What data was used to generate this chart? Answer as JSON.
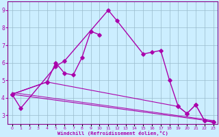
{
  "xlabel": "Windchill (Refroidissement éolien,°C)",
  "x": [
    0,
    1,
    2,
    3,
    4,
    5,
    6,
    7,
    8,
    9,
    10,
    11,
    12,
    13,
    14,
    15,
    16,
    17,
    18,
    19,
    20,
    21,
    22,
    23
  ],
  "line1_x": [
    0,
    1,
    5,
    6,
    11,
    12,
    15,
    16,
    17,
    18,
    19,
    20,
    21,
    22,
    23
  ],
  "line1_y": [
    4.2,
    3.4,
    5.8,
    6.1,
    9.0,
    8.4,
    6.5,
    6.6,
    6.7,
    5.0,
    3.5,
    3.1,
    3.6,
    2.7,
    2.6
  ],
  "line2_x": [
    0,
    4,
    5,
    6,
    7,
    8,
    9,
    10
  ],
  "line2_y": [
    4.2,
    4.9,
    6.0,
    5.4,
    5.3,
    6.3,
    7.8,
    7.6
  ],
  "trend1_x": [
    0,
    23
  ],
  "trend1_y": [
    4.2,
    2.65
  ],
  "trend2_x": [
    0,
    4,
    19,
    20,
    21,
    22,
    23
  ],
  "trend2_y": [
    4.2,
    4.9,
    3.5,
    3.1,
    3.6,
    2.7,
    2.6
  ],
  "trend3_x": [
    0,
    23
  ],
  "trend3_y": [
    4.3,
    2.7
  ],
  "line_color": "#AA00AA",
  "bg_color": "#CCEEFF",
  "grid_color": "#99BBCC",
  "ylim": [
    2.5,
    9.5
  ],
  "xlim": [
    -0.5,
    23.5
  ],
  "yticks": [
    3,
    4,
    5,
    6,
    7,
    8,
    9
  ],
  "xtick_labels": [
    "0",
    "1",
    "2",
    "3",
    "4",
    "5",
    "6",
    "7",
    "8",
    "9",
    "10",
    "11",
    "12",
    "13",
    "14",
    "15",
    "16",
    "17",
    "18",
    "19",
    "20",
    "21",
    "22",
    "23"
  ]
}
